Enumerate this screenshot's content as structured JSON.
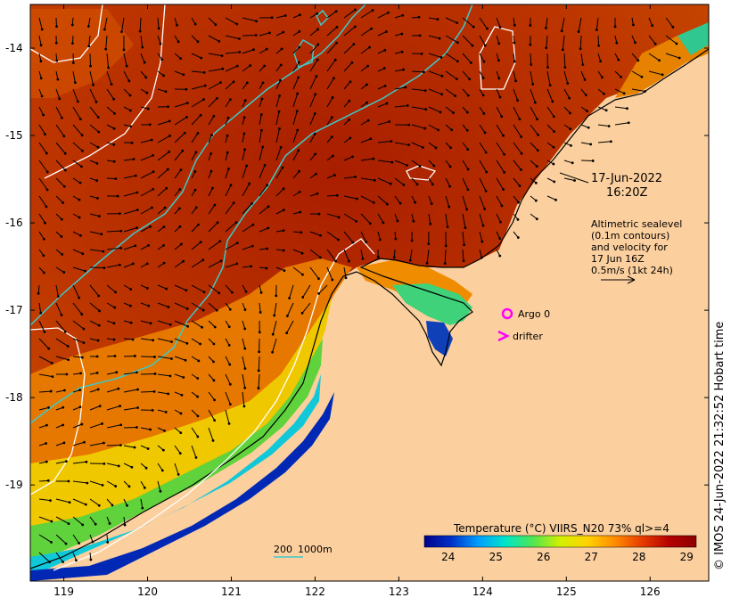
{
  "map": {
    "y_ticks": [
      "-14",
      "-15",
      "-16",
      "-17",
      "-18",
      "-19"
    ],
    "x_ticks": [
      "119",
      "120",
      "121",
      "122",
      "123",
      "124",
      "125",
      "126"
    ],
    "lon_range": [
      118.6,
      126.7
    ],
    "lat_range": [
      -20.1,
      -13.5
    ]
  },
  "annotation": {
    "date": "17-Jun-2022",
    "time": "16:20Z",
    "altimetry_lines": [
      "Altimetric sealevel",
      "(0.1m contours)",
      "and velocity for",
      "17 Jun 16Z",
      "0.5m/s (1kt 24h)"
    ]
  },
  "legend": {
    "argo_label": "Argo 0",
    "drifter_label": "drifter",
    "argo_color": "#ff00ff",
    "drifter_color": "#ff00ff"
  },
  "isobath": {
    "label_200": "200",
    "label_1000": "1000m",
    "color": "#40c8c8"
  },
  "colorbar": {
    "title": "Temperature (°C) VIIRS_N20 73% ql>=4",
    "ticks": [
      "24",
      "25",
      "26",
      "27",
      "28",
      "29"
    ],
    "range": [
      23.5,
      29.2
    ],
    "colors": [
      "#00008c",
      "#0032c8",
      "#00a0ff",
      "#00e6c8",
      "#50e650",
      "#d2f000",
      "#ffd200",
      "#ff8c00",
      "#e63c00",
      "#b40000",
      "#8c0000"
    ]
  },
  "credit": "© IMOS 24-Jun-2022 21:32:52 Hobart time",
  "colors": {
    "land": "#fbcf9e",
    "sea_warm": "#b42a00",
    "sea_dark": "#a01c00",
    "contour": "#ffffff",
    "vector": "#000000"
  }
}
